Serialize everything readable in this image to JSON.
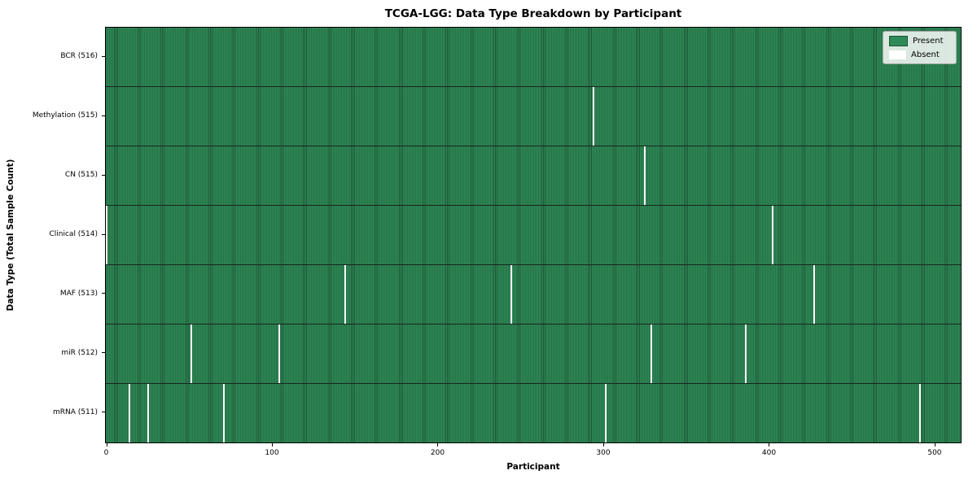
{
  "title": "TCGA-LGG: Data Type Breakdown by Participant",
  "chart_data": {
    "type": "heatmap",
    "title": "TCGA-LGG: Data Type Breakdown by Participant",
    "xlabel": "Participant",
    "ylabel": "Data Type (Total Sample Count)",
    "total_participants": 516,
    "xlim": [
      0,
      516
    ],
    "x_ticks": [
      0,
      100,
      200,
      300,
      400,
      500
    ],
    "grid": false,
    "rows": [
      {
        "data_type": "BCR",
        "label": "BCR (516)",
        "present_count": 516,
        "absent_participants": []
      },
      {
        "data_type": "Methylation",
        "label": "Methylation (515)",
        "present_count": 515,
        "absent_participants": [
          294
        ]
      },
      {
        "data_type": "CN",
        "label": "CN (515)",
        "present_count": 515,
        "absent_participants": [
          325
        ]
      },
      {
        "data_type": "Clinical",
        "label": "Clinical (514)",
        "present_count": 514,
        "absent_participants": [
          0,
          402
        ]
      },
      {
        "data_type": "MAF",
        "label": "MAF (513)",
        "present_count": 513,
        "absent_participants": [
          144,
          244,
          427
        ]
      },
      {
        "data_type": "miR",
        "label": "miR (512)",
        "present_count": 512,
        "absent_participants": [
          51,
          104,
          329,
          386
        ]
      },
      {
        "data_type": "mRNA",
        "label": "mRNA (511)",
        "present_count": 511,
        "absent_participants": [
          14,
          25,
          71,
          301,
          491
        ]
      }
    ],
    "legend": {
      "position": "upper right",
      "entries": [
        {
          "label": "Present",
          "color": "#2e8b57"
        },
        {
          "label": "Absent",
          "color": "#ffffff"
        }
      ]
    },
    "colors": {
      "present": "#2e8b57",
      "bar_edge": "#1d5434",
      "absent": "#ffffff",
      "row_divider": "#1b241d",
      "plot_border": "#000000",
      "background": "#ffffff"
    }
  }
}
